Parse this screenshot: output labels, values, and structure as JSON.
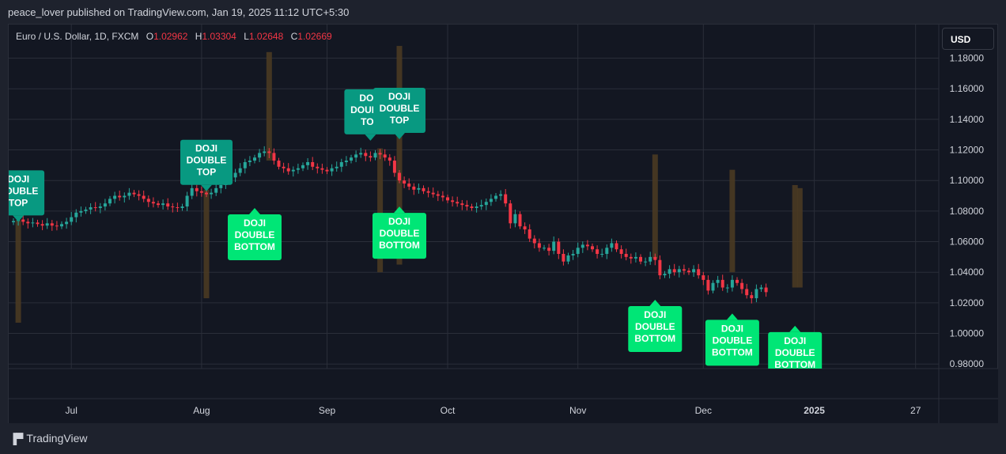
{
  "header": {
    "publish_line": "peace_lover published on TradingView.com, Jan 19, 2025 11:12 UTC+5:30"
  },
  "legend": {
    "symbol": "Euro / U.S. Dollar, 1D, FXCM",
    "open_label": "O",
    "open": "1.02962",
    "high_label": "H",
    "high": "1.03304",
    "low_label": "L",
    "low": "1.02648",
    "close_label": "C",
    "close": "1.02669"
  },
  "currency_button": "USD",
  "footer": {
    "brand": "TradingView",
    "logo_icon": "tradingview-logo-icon"
  },
  "colors": {
    "up": "#26a69a",
    "down": "#f23645",
    "bottom_label": "#00e676",
    "top_label": "#089981",
    "doji_bar": "#4a3a22",
    "grid": "#2a2e39",
    "background": "#131722"
  },
  "chart_data": {
    "type": "candlestick",
    "symbol": "EURUSD",
    "interval": "1D",
    "x_ticks": [
      "Jul",
      "Aug",
      "Sep",
      "Oct",
      "Nov",
      "Dec",
      "2025",
      "27"
    ],
    "y_ticks": [
      "1.18000",
      "1.16000",
      "1.14000",
      "1.12000",
      "1.10000",
      "1.08000",
      "1.06000",
      "1.04000",
      "1.02000",
      "1.00000",
      "0.98000"
    ],
    "ylim": [
      0.977,
      1.202
    ],
    "close_series": [
      1.0735,
      1.0745,
      1.073,
      1.072,
      1.0725,
      1.0715,
      1.0705,
      1.072,
      1.0705,
      1.07,
      1.0715,
      1.073,
      1.076,
      1.079,
      1.08,
      1.081,
      1.0825,
      1.082,
      1.083,
      1.085,
      1.088,
      1.09,
      1.089,
      1.09,
      1.092,
      1.091,
      1.09,
      1.088,
      1.086,
      1.085,
      1.084,
      1.085,
      1.083,
      1.0825,
      1.082,
      1.083,
      1.09,
      1.095,
      1.093,
      1.092,
      1.091,
      1.092,
      1.095,
      1.097,
      1.1,
      1.102,
      1.105,
      1.108,
      1.112,
      1.113,
      1.115,
      1.118,
      1.119,
      1.118,
      1.113,
      1.109,
      1.108,
      1.106,
      1.107,
      1.108,
      1.11,
      1.112,
      1.109,
      1.108,
      1.107,
      1.106,
      1.108,
      1.109,
      1.112,
      1.113,
      1.115,
      1.117,
      1.118,
      1.116,
      1.115,
      1.118,
      1.117,
      1.115,
      1.113,
      1.105,
      1.1,
      1.098,
      1.096,
      1.094,
      1.095,
      1.093,
      1.092,
      1.091,
      1.09,
      1.089,
      1.087,
      1.086,
      1.085,
      1.084,
      1.083,
      1.082,
      1.083,
      1.084,
      1.086,
      1.088,
      1.09,
      1.091,
      1.085,
      1.072,
      1.078,
      1.07,
      1.068,
      1.062,
      1.059,
      1.056,
      1.056,
      1.054,
      1.06,
      1.052,
      1.047,
      1.051,
      1.052,
      1.056,
      1.058,
      1.057,
      1.055,
      1.052,
      1.052,
      1.056,
      1.059,
      1.055,
      1.052,
      1.05,
      1.049,
      1.05,
      1.047,
      1.047,
      1.05,
      1.048,
      1.038,
      1.039,
      1.042,
      1.04,
      1.042,
      1.041,
      1.04,
      1.042,
      1.038,
      1.035,
      1.028,
      1.033,
      1.035,
      1.03,
      1.03,
      1.035,
      1.033,
      1.029,
      1.025,
      1.023,
      1.029,
      1.03,
      1.027
    ],
    "doji_bars": [
      {
        "index": 1,
        "low": 1.007,
        "high": 1.074
      },
      {
        "index": 40,
        "low": 1.023,
        "high": 1.094
      },
      {
        "index": 53,
        "low": 1.113,
        "high": 1.184
      },
      {
        "index": 76,
        "low": 1.04,
        "high": 1.121
      },
      {
        "index": 80,
        "low": 1.045,
        "high": 1.188
      },
      {
        "index": 133,
        "low": 1.049,
        "high": 1.117
      },
      {
        "index": 149,
        "low": 1.04,
        "high": 1.107
      },
      {
        "index": 162,
        "low": 1.03,
        "high": 1.097
      },
      {
        "index": 163,
        "low": 1.03,
        "high": 1.095
      }
    ],
    "annotations": [
      {
        "text": "DOJI\nDOUBLE\nTOP",
        "kind": "top",
        "index": 1,
        "price": 1.073
      },
      {
        "text": "DOJI\nDOUBLE\nTOP",
        "kind": "top",
        "index": 40,
        "price": 1.093
      },
      {
        "text": "DOJI\nDOUBLE\nTOP",
        "kind": "top",
        "index": 74,
        "price": 1.126
      },
      {
        "text": "DOJI\nDOUBLE\nTOP",
        "kind": "top",
        "index": 80,
        "price": 1.127
      },
      {
        "text": "DOJI\nDOUBLE\nBOTTOM",
        "kind": "bottom",
        "index": 50,
        "price": 1.082
      },
      {
        "text": "DOJI\nDOUBLE\nBOTTOM",
        "kind": "bottom",
        "index": 80,
        "price": 1.083
      },
      {
        "text": "DOJI\nDOUBLE\nBOTTOM",
        "kind": "bottom",
        "index": 133,
        "price": 1.022
      },
      {
        "text": "DOJI\nDOUBLE\nBOTTOM",
        "kind": "bottom",
        "index": 149,
        "price": 1.013
      },
      {
        "text": "DOJI\nDOUBLE\nBOTTOM",
        "kind": "bottom",
        "index": 162,
        "price": 1.005
      }
    ]
  }
}
